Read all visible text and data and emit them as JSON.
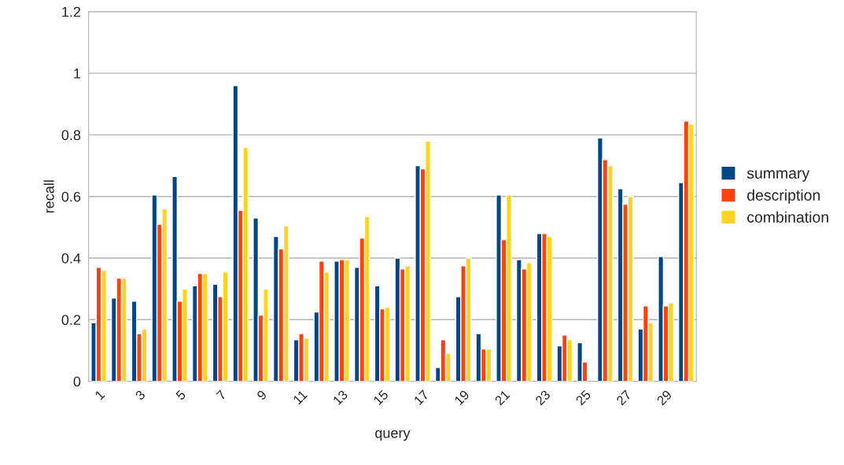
{
  "chart_data": {
    "type": "bar",
    "xlabel": "query",
    "ylabel": "recall",
    "categories": [
      "1",
      null,
      "3",
      null,
      "5",
      null,
      "7",
      null,
      "9",
      null,
      "11",
      null,
      "13",
      null,
      "15",
      null,
      "17",
      null,
      "19",
      null,
      "21",
      null,
      "23",
      null,
      "25",
      null,
      "27",
      null,
      "29",
      null
    ],
    "series": [
      {
        "name": "summary",
        "color": "#004586",
        "values": [
          0.19,
          0.27,
          0.26,
          0.605,
          0.665,
          0.31,
          0.315,
          0.96,
          0.53,
          0.47,
          0.135,
          0.225,
          0.39,
          0.37,
          0.31,
          0.4,
          0.7,
          0.045,
          0.275,
          0.155,
          0.605,
          0.395,
          0.48,
          0.115,
          0.125,
          0.79,
          0.625,
          0.17,
          0.405,
          0.645
        ]
      },
      {
        "name": "description",
        "color": "#ff420e",
        "values": [
          0.37,
          0.335,
          0.155,
          0.51,
          0.26,
          0.35,
          0.275,
          0.555,
          0.215,
          0.43,
          0.155,
          0.39,
          0.395,
          0.465,
          0.235,
          0.365,
          0.69,
          0.135,
          0.375,
          0.105,
          0.46,
          0.365,
          0.48,
          0.15,
          0.063,
          0.72,
          0.575,
          0.245,
          0.245,
          0.845
        ]
      },
      {
        "name": "combination",
        "color": "#ffd320",
        "values": [
          0.36,
          0.335,
          0.17,
          0.56,
          0.3,
          0.35,
          0.355,
          0.76,
          0.3,
          0.505,
          0.14,
          0.355,
          0.395,
          0.535,
          0.24,
          0.375,
          0.78,
          0.09,
          0.4,
          0.105,
          0.605,
          0.385,
          0.47,
          0.135,
          null,
          0.7,
          0.6,
          0.19,
          0.255,
          0.835
        ]
      }
    ],
    "ylim": [
      0,
      1.2
    ],
    "yticks": [
      0,
      0.2,
      0.4,
      0.6,
      0.8,
      1,
      1.2
    ],
    "grid": "y",
    "legend": "right"
  }
}
